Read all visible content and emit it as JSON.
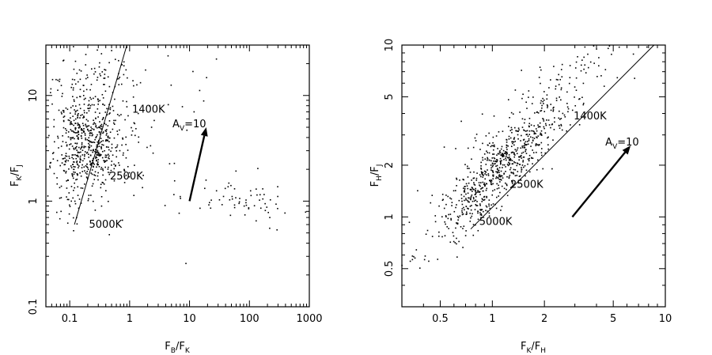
{
  "chart_data": [
    {
      "type": "scatter",
      "xscale": "log",
      "yscale": "log",
      "xlim": [
        0.04,
        1000
      ],
      "ylim": [
        0.1,
        30
      ],
      "xlabel": "F_B/F_K",
      "ylabel": "F_K/F_J",
      "xticks": [
        0.1,
        1,
        10,
        100,
        1000
      ],
      "xtick_labels": [
        "0.1",
        "1",
        "10",
        "100",
        "1000"
      ],
      "yticks": [
        0.1,
        1,
        10
      ],
      "ytick_labels": [
        "0.1",
        "1",
        "10"
      ],
      "blackbody_line": {
        "from": [
          0.12,
          0.6
        ],
        "to": [
          0.9,
          30
        ]
      },
      "temperature_labels": [
        {
          "text": "1400K",
          "x": 1.1,
          "y": 6.9
        },
        {
          "text": "2500K",
          "x": 0.47,
          "y": 1.6
        },
        {
          "text": "5000K",
          "x": 0.21,
          "y": 0.56
        }
      ],
      "reddening_vector": {
        "label": "A_V=10",
        "from": [
          10,
          1.0
        ],
        "to": [
          19,
          5.0
        ],
        "label_at": [
          5.2,
          5.0
        ]
      },
      "clusters": [
        {
          "cx": 0.2,
          "cy": 3.2,
          "sx": 0.28,
          "sy": 0.22,
          "n": 420,
          "seed": 11
        },
        {
          "cx": 0.17,
          "cy": 6.0,
          "sx": 0.3,
          "sy": 0.28,
          "n": 130,
          "seed": 12
        },
        {
          "cx": 0.3,
          "cy": 15.0,
          "sx": 0.25,
          "sy": 0.15,
          "n": 50,
          "seed": 13
        },
        {
          "cx": 0.5,
          "cy": 4.5,
          "sx": 0.35,
          "sy": 0.3,
          "n": 90,
          "seed": 14
        },
        {
          "cx": 100,
          "cy": 1.0,
          "sx": 0.4,
          "sy": 0.12,
          "n": 60,
          "seed": 15
        },
        {
          "cx": 3,
          "cy": 3.5,
          "sx": 0.6,
          "sy": 0.45,
          "n": 40,
          "seed": 16
        },
        {
          "cx": 0.1,
          "cy": 1.2,
          "sx": 0.12,
          "sy": 0.22,
          "n": 40,
          "seed": 17
        }
      ]
    },
    {
      "type": "scatter",
      "xscale": "log",
      "yscale": "log",
      "xlim": [
        0.3,
        10
      ],
      "ylim": [
        0.3,
        10
      ],
      "xlabel": "F_K/F_H",
      "ylabel": "F_H/F_J",
      "xticks": [
        0.5,
        1,
        2,
        5,
        10
      ],
      "xtick_labels": [
        "0.5",
        "1",
        "2",
        "5",
        "10"
      ],
      "yticks": [
        0.5,
        1,
        2,
        5,
        10
      ],
      "ytick_labels": [
        "0.5",
        "1",
        "2",
        "5",
        "10"
      ],
      "blackbody_line": {
        "from": [
          0.75,
          0.85
        ],
        "to": [
          8.6,
          10
        ]
      },
      "temperature_labels": [
        {
          "text": "1400K",
          "x": 2.95,
          "y": 3.7
        },
        {
          "text": "2500K",
          "x": 1.27,
          "y": 1.48
        },
        {
          "text": "5000K",
          "x": 0.84,
          "y": 0.9
        }
      ],
      "reddening_vector": {
        "label": "A_V=10",
        "from": [
          2.9,
          1.0
        ],
        "to": [
          6.3,
          2.6
        ],
        "label_at": [
          4.5,
          2.6
        ]
      },
      "clusters": [
        {
          "cx": 1.15,
          "cy": 2.0,
          "sx": 0.2,
          "sy": 0.2,
          "n": 650,
          "seed": 21,
          "corr": 1.0
        },
        {
          "cx": 2.2,
          "cy": 5.5,
          "sx": 0.3,
          "sy": 0.3,
          "n": 160,
          "seed": 22,
          "corr": 1.0
        },
        {
          "cx": 0.8,
          "cy": 1.0,
          "sx": 0.1,
          "sy": 0.12,
          "n": 50,
          "seed": 23,
          "corr": 1.0
        }
      ]
    }
  ]
}
